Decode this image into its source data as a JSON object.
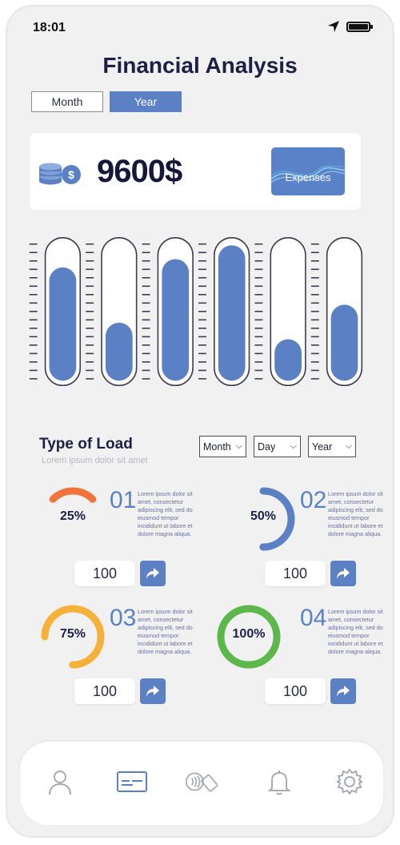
{
  "status_bar": {
    "time": "18:01"
  },
  "title": "Financial Analysis",
  "period_toggle": {
    "month_label": "Month",
    "year_label": "Year",
    "selected": "Year"
  },
  "summary": {
    "amount": "9600$",
    "expenses_label": "Expenses"
  },
  "level_bars": {
    "values": [
      0.82,
      0.42,
      0.88,
      0.98,
      0.3,
      0.55
    ]
  },
  "type_of_load": {
    "title": "Type of Load",
    "subtitle": "Lorem ipsum dolor sit amet",
    "filters": [
      "Month",
      "Day",
      "Year"
    ],
    "items": [
      {
        "percent": "25%",
        "fraction": 0.25,
        "number": "01",
        "color": "#f0743a",
        "text": "Lorem ipsum dolor sit amet, consectetur adipiscing elit, sed do eiusmod tempor incididunt ut labore et dolore magna aliqua.",
        "value": "100"
      },
      {
        "percent": "50%",
        "fraction": 0.5,
        "number": "02",
        "color": "#5b80c4",
        "text": "Lorem ipsum dolor sit amet, consectetur adipiscing elit, sed do eiusmod tempor incididunt ut labore et dolore magna aliqua.",
        "value": "100"
      },
      {
        "percent": "75%",
        "fraction": 0.75,
        "number": "03",
        "color": "#f4b23a",
        "text": "Lorem ipsum dolor sit amet, consectetur adipiscing elit, sed do eiusmod tempor incididunt ut labore et dolore magna aliqua.",
        "value": "100"
      },
      {
        "percent": "100%",
        "fraction": 1.0,
        "number": "04",
        "color": "#5cb84a",
        "text": "Lorem ipsum dolor sit amet, consectetur adipiscing elit, sed do eiusmod tempor incididunt ut labore et dolore magna aliqua.",
        "value": "100"
      }
    ]
  },
  "colors": {
    "accent": "#5b80c4",
    "title": "#1e1f45",
    "background": "#f1f1f2"
  },
  "nav_icons": [
    "user-icon",
    "credit-card-icon",
    "contactless-pay-icon",
    "bell-icon",
    "gear-icon"
  ],
  "nav_active": "credit-card-icon"
}
